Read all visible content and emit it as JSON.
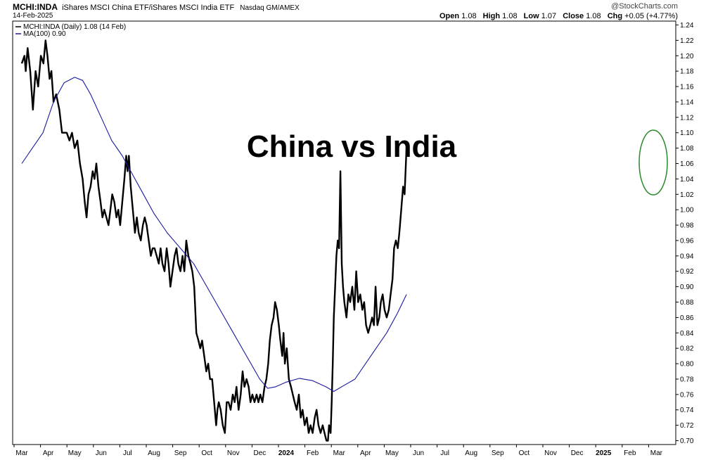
{
  "header": {
    "symbol": "MCHI:INDA",
    "name": "iShares MSCI China ETF/iShares MSCI India ETF",
    "exchange": "Nasdaq GM/AMEX",
    "date": "14-Feb-2025",
    "watermark": "@StockCharts.com",
    "quote": {
      "open_label": "Open",
      "open": "1.08",
      "high_label": "High",
      "high": "1.08",
      "low_label": "Low",
      "low": "1.07",
      "close_label": "Close",
      "close": "1.08",
      "chg_label": "Chg",
      "chg": "+0.05 (+4.77%)"
    }
  },
  "legend": [
    {
      "label": "MCHI:INDA (Daily) 1.08 (14 Feb)",
      "color": "#000000"
    },
    {
      "label": "MA(100) 0.90",
      "color": "#1a1aa0"
    }
  ],
  "annotation": {
    "text": "China vs India",
    "circle_color": "#2a8a2a"
  },
  "chart_data": {
    "type": "line",
    "x_labels": [
      "Mar",
      "Apr",
      "May",
      "Jun",
      "Jul",
      "Aug",
      "Sep",
      "Oct",
      "Nov",
      "Dec",
      "2024",
      "Feb",
      "Mar",
      "Apr",
      "May",
      "Jun",
      "Jul",
      "Aug",
      "Sep",
      "Oct",
      "Nov",
      "Dec",
      "2025",
      "Feb",
      "Mar"
    ],
    "bold_labels": [
      "2024",
      "2025"
    ],
    "y_ticks": [
      0.7,
      0.72,
      0.74,
      0.76,
      0.78,
      0.8,
      0.82,
      0.84,
      0.86,
      0.88,
      0.9,
      0.92,
      0.94,
      0.96,
      0.98,
      1.0,
      1.02,
      1.04,
      1.06,
      1.08,
      1.1,
      1.12,
      1.14,
      1.16,
      1.18,
      1.2,
      1.22,
      1.24
    ],
    "ylim": [
      0.695,
      1.245
    ],
    "series": [
      {
        "name": "MCHI:INDA (Daily)",
        "color": "#000000",
        "points": [
          [
            0.0,
            1.19
          ],
          [
            0.1,
            1.2
          ],
          [
            0.15,
            1.18
          ],
          [
            0.22,
            1.21
          ],
          [
            0.32,
            1.18
          ],
          [
            0.42,
            1.13
          ],
          [
            0.52,
            1.18
          ],
          [
            0.62,
            1.16
          ],
          [
            0.72,
            1.2
          ],
          [
            0.82,
            1.19
          ],
          [
            0.9,
            1.22
          ],
          [
            0.97,
            1.2
          ],
          [
            1.05,
            1.17
          ],
          [
            1.12,
            1.18
          ],
          [
            1.2,
            1.14
          ],
          [
            1.3,
            1.15
          ],
          [
            1.42,
            1.13
          ],
          [
            1.52,
            1.1
          ],
          [
            1.6,
            1.1
          ],
          [
            1.7,
            1.1
          ],
          [
            1.8,
            1.09
          ],
          [
            1.9,
            1.1
          ],
          [
            2.0,
            1.08
          ],
          [
            2.1,
            1.09
          ],
          [
            2.2,
            1.06
          ],
          [
            2.3,
            1.04
          ],
          [
            2.38,
            1.01
          ],
          [
            2.45,
            0.99
          ],
          [
            2.52,
            1.02
          ],
          [
            2.6,
            1.03
          ],
          [
            2.68,
            1.05
          ],
          [
            2.75,
            1.04
          ],
          [
            2.82,
            1.06
          ],
          [
            2.9,
            1.03
          ],
          [
            2.98,
            1.01
          ],
          [
            3.05,
            0.99
          ],
          [
            3.12,
            1.0
          ],
          [
            3.2,
            0.99
          ],
          [
            3.28,
            0.98
          ],
          [
            3.35,
            1.0
          ],
          [
            3.42,
            1.02
          ],
          [
            3.5,
            1.01
          ],
          [
            3.58,
            0.99
          ],
          [
            3.65,
            1.0
          ],
          [
            3.72,
            0.98
          ],
          [
            3.8,
            1.01
          ],
          [
            3.88,
            1.04
          ],
          [
            3.95,
            1.07
          ],
          [
            4.0,
            1.05
          ],
          [
            4.05,
            1.07
          ],
          [
            4.12,
            1.03
          ],
          [
            4.2,
            1.0
          ],
          [
            4.28,
            0.97
          ],
          [
            4.35,
            0.99
          ],
          [
            4.42,
            0.97
          ],
          [
            4.5,
            0.96
          ],
          [
            4.58,
            0.98
          ],
          [
            4.65,
            0.99
          ],
          [
            4.72,
            0.98
          ],
          [
            4.8,
            0.96
          ],
          [
            4.88,
            0.94
          ],
          [
            4.95,
            0.95
          ],
          [
            5.02,
            0.95
          ],
          [
            5.1,
            0.94
          ],
          [
            5.18,
            0.93
          ],
          [
            5.25,
            0.95
          ],
          [
            5.32,
            0.93
          ],
          [
            5.4,
            0.92
          ],
          [
            5.48,
            0.95
          ],
          [
            5.55,
            0.93
          ],
          [
            5.62,
            0.9
          ],
          [
            5.7,
            0.92
          ],
          [
            5.78,
            0.94
          ],
          [
            5.85,
            0.95
          ],
          [
            5.92,
            0.93
          ],
          [
            6.0,
            0.92
          ],
          [
            6.08,
            0.94
          ],
          [
            6.15,
            0.92
          ],
          [
            6.22,
            0.96
          ],
          [
            6.3,
            0.94
          ],
          [
            6.38,
            0.93
          ],
          [
            6.45,
            0.92
          ],
          [
            6.52,
            0.9
          ],
          [
            6.6,
            0.84
          ],
          [
            6.68,
            0.83
          ],
          [
            6.75,
            0.82
          ],
          [
            6.82,
            0.83
          ],
          [
            6.9,
            0.81
          ],
          [
            6.98,
            0.79
          ],
          [
            7.05,
            0.8
          ],
          [
            7.12,
            0.78
          ],
          [
            7.2,
            0.78
          ],
          [
            7.25,
            0.76
          ],
          [
            7.3,
            0.74
          ],
          [
            7.35,
            0.72
          ],
          [
            7.4,
            0.74
          ],
          [
            7.45,
            0.75
          ],
          [
            7.52,
            0.74
          ],
          [
            7.6,
            0.72
          ],
          [
            7.68,
            0.71
          ],
          [
            7.75,
            0.75
          ],
          [
            7.82,
            0.75
          ],
          [
            7.9,
            0.74
          ],
          [
            7.98,
            0.76
          ],
          [
            8.05,
            0.75
          ],
          [
            8.12,
            0.77
          ],
          [
            8.2,
            0.74
          ],
          [
            8.28,
            0.76
          ],
          [
            8.35,
            0.79
          ],
          [
            8.42,
            0.77
          ],
          [
            8.5,
            0.78
          ],
          [
            8.58,
            0.77
          ],
          [
            8.65,
            0.75
          ],
          [
            8.72,
            0.76
          ],
          [
            8.8,
            0.75
          ],
          [
            8.88,
            0.76
          ],
          [
            8.95,
            0.75
          ],
          [
            9.02,
            0.76
          ],
          [
            9.1,
            0.75
          ],
          [
            9.18,
            0.77
          ],
          [
            9.25,
            0.78
          ],
          [
            9.32,
            0.8
          ],
          [
            9.38,
            0.83
          ],
          [
            9.45,
            0.85
          ],
          [
            9.52,
            0.86
          ],
          [
            9.58,
            0.88
          ],
          [
            9.65,
            0.87
          ],
          [
            9.72,
            0.85
          ],
          [
            9.78,
            0.83
          ],
          [
            9.85,
            0.81
          ],
          [
            9.9,
            0.84
          ],
          [
            9.95,
            0.8
          ],
          [
            10.02,
            0.82
          ],
          [
            10.1,
            0.78
          ],
          [
            10.18,
            0.77
          ],
          [
            10.25,
            0.76
          ],
          [
            10.32,
            0.75
          ],
          [
            10.4,
            0.74
          ],
          [
            10.48,
            0.76
          ],
          [
            10.55,
            0.73
          ],
          [
            10.62,
            0.74
          ],
          [
            10.7,
            0.72
          ],
          [
            10.78,
            0.73
          ],
          [
            10.85,
            0.71
          ],
          [
            10.92,
            0.72
          ],
          [
            11.0,
            0.71
          ],
          [
            11.08,
            0.73
          ],
          [
            11.15,
            0.74
          ],
          [
            11.22,
            0.72
          ],
          [
            11.3,
            0.71
          ],
          [
            11.38,
            0.72
          ],
          [
            11.45,
            0.71
          ],
          [
            11.52,
            0.7
          ],
          [
            11.58,
            0.7
          ],
          [
            11.62,
            0.72
          ],
          [
            11.68,
            0.71
          ],
          [
            11.72,
            0.75
          ],
          [
            11.76,
            0.8
          ],
          [
            11.8,
            0.86
          ],
          [
            11.85,
            0.9
          ],
          [
            11.9,
            0.94
          ],
          [
            11.95,
            0.96
          ],
          [
            12.0,
            0.95
          ],
          [
            12.05,
            1.05
          ],
          [
            12.1,
            0.93
          ],
          [
            12.15,
            0.9
          ],
          [
            12.2,
            0.88
          ],
          [
            12.28,
            0.86
          ],
          [
            12.35,
            0.89
          ],
          [
            12.42,
            0.88
          ],
          [
            12.5,
            0.9
          ],
          [
            12.58,
            0.87
          ],
          [
            12.65,
            0.92
          ],
          [
            12.72,
            0.88
          ],
          [
            12.8,
            0.89
          ],
          [
            12.88,
            0.87
          ],
          [
            12.95,
            0.88
          ],
          [
            13.02,
            0.85
          ],
          [
            13.1,
            0.84
          ],
          [
            13.18,
            0.85
          ],
          [
            13.25,
            0.86
          ],
          [
            13.32,
            0.85
          ],
          [
            13.38,
            0.9
          ],
          [
            13.45,
            0.85
          ],
          [
            13.52,
            0.86
          ],
          [
            13.58,
            0.88
          ],
          [
            13.65,
            0.89
          ],
          [
            13.72,
            0.87
          ],
          [
            13.8,
            0.86
          ],
          [
            13.88,
            0.87
          ],
          [
            13.95,
            0.89
          ],
          [
            14.02,
            0.91
          ],
          [
            14.08,
            0.95
          ],
          [
            14.15,
            0.96
          ],
          [
            14.22,
            0.95
          ],
          [
            14.28,
            0.97
          ],
          [
            14.35,
            1.0
          ],
          [
            14.42,
            1.03
          ],
          [
            14.48,
            1.02
          ],
          [
            14.55,
            1.08
          ]
        ]
      },
      {
        "name": "MA(100)",
        "color": "#1a1aa0",
        "points": [
          [
            0.0,
            1.06
          ],
          [
            0.4,
            1.08
          ],
          [
            0.8,
            1.1
          ],
          [
            1.2,
            1.14
          ],
          [
            1.6,
            1.165
          ],
          [
            2.0,
            1.172
          ],
          [
            2.3,
            1.168
          ],
          [
            2.6,
            1.15
          ],
          [
            3.0,
            1.12
          ],
          [
            3.4,
            1.09
          ],
          [
            3.8,
            1.07
          ],
          [
            4.2,
            1.045
          ],
          [
            4.6,
            1.02
          ],
          [
            5.0,
            0.995
          ],
          [
            5.5,
            0.97
          ],
          [
            6.0,
            0.95
          ],
          [
            6.5,
            0.93
          ],
          [
            7.0,
            0.9
          ],
          [
            7.5,
            0.87
          ],
          [
            8.0,
            0.84
          ],
          [
            8.5,
            0.81
          ],
          [
            9.0,
            0.78
          ],
          [
            9.3,
            0.768
          ],
          [
            9.6,
            0.77
          ],
          [
            10.0,
            0.776
          ],
          [
            10.5,
            0.781
          ],
          [
            11.0,
            0.778
          ],
          [
            11.5,
            0.77
          ],
          [
            11.8,
            0.764
          ],
          [
            12.2,
            0.772
          ],
          [
            12.6,
            0.78
          ],
          [
            13.0,
            0.8
          ],
          [
            13.4,
            0.82
          ],
          [
            13.8,
            0.84
          ],
          [
            14.2,
            0.865
          ],
          [
            14.55,
            0.89
          ]
        ]
      }
    ]
  }
}
